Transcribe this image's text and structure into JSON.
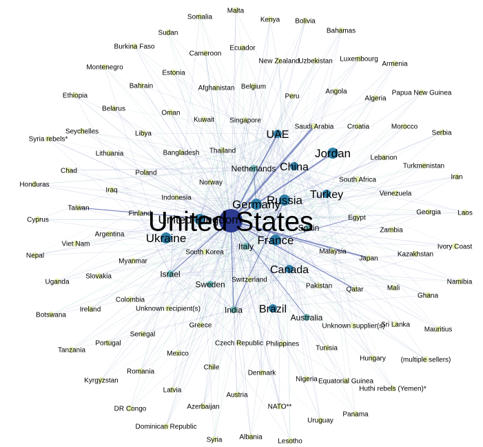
{
  "title": "",
  "colors": {
    "hub": "#2b3a8f",
    "large_node": "#2e7fa8",
    "mid_node": "#6fb8b8",
    "small_node": "#e9f3b4",
    "edge_blue": "#3a4da0",
    "edge_green": "#5cc09a"
  },
  "nodes": [
    {
      "id": "united-states",
      "label": "United States",
      "tier": 5
    },
    {
      "id": "united-kingdom",
      "label": "United Kingdom",
      "tier": 3
    },
    {
      "id": "germany",
      "label": "Germany",
      "tier": 3
    },
    {
      "id": "russia",
      "label": "Russia",
      "tier": 3
    },
    {
      "id": "france",
      "label": "France",
      "tier": 3
    },
    {
      "id": "jordan",
      "label": "Jordan",
      "tier": 3
    },
    {
      "id": "ukraine",
      "label": "Ukraine",
      "tier": 3
    },
    {
      "id": "uae",
      "label": "UAE",
      "tier": 2
    },
    {
      "id": "china",
      "label": "China",
      "tier": 2
    },
    {
      "id": "canada",
      "label": "Canada",
      "tier": 2
    },
    {
      "id": "turkey",
      "label": "Turkey",
      "tier": 2
    },
    {
      "id": "brazil",
      "label": "Brazil",
      "tier": 2
    },
    {
      "id": "netherlands",
      "label": "Netherlands",
      "tier": 1
    },
    {
      "id": "italy",
      "label": "Italy",
      "tier": 1
    },
    {
      "id": "spain",
      "label": "Spain",
      "tier": 1
    },
    {
      "id": "israel",
      "label": "Israel",
      "tier": 1
    },
    {
      "id": "sweden",
      "label": "Sweden",
      "tier": 1
    },
    {
      "id": "india",
      "label": "India",
      "tier": 1
    },
    {
      "id": "australia",
      "label": "Australia",
      "tier": 1
    },
    {
      "id": "saudi-arabia",
      "label": "Saudi Arabia",
      "tier": 0
    },
    {
      "id": "malta",
      "label": "Malta",
      "tier": 0
    },
    {
      "id": "somalia",
      "label": "Somalia",
      "tier": 0
    },
    {
      "id": "kenya",
      "label": "Kenya",
      "tier": 0
    },
    {
      "id": "bolivia",
      "label": "Bolivia",
      "tier": 0
    },
    {
      "id": "sudan",
      "label": "Sudan",
      "tier": 0
    },
    {
      "id": "bahamas",
      "label": "Bahamas",
      "tier": 0
    },
    {
      "id": "burkina-faso",
      "label": "Burkina Faso",
      "tier": 0
    },
    {
      "id": "ecuador",
      "label": "Ecuador",
      "tier": 0
    },
    {
      "id": "cameroon",
      "label": "Cameroon",
      "tier": 0
    },
    {
      "id": "new-zealand",
      "label": "New Zealand",
      "tier": 0
    },
    {
      "id": "uzbekistan",
      "label": "Uzbekistan",
      "tier": 0
    },
    {
      "id": "luxembourg",
      "label": "Luxembourg",
      "tier": 0
    },
    {
      "id": "armenia",
      "label": "Armenia",
      "tier": 0
    },
    {
      "id": "montenegro",
      "label": "Montenegro",
      "tier": 0
    },
    {
      "id": "estonia",
      "label": "Estonia",
      "tier": 0
    },
    {
      "id": "bahrain",
      "label": "Bahrain",
      "tier": 0
    },
    {
      "id": "afghanistan",
      "label": "Afghanistan",
      "tier": 0
    },
    {
      "id": "belgium",
      "label": "Belgium",
      "tier": 0
    },
    {
      "id": "angola",
      "label": "Angola",
      "tier": 0
    },
    {
      "id": "algeria",
      "label": "Algeria",
      "tier": 0
    },
    {
      "id": "papua-new-guinea",
      "label": "Papua New Guinea",
      "tier": 0
    },
    {
      "id": "ethiopia",
      "label": "Ethiopia",
      "tier": 0
    },
    {
      "id": "peru",
      "label": "Peru",
      "tier": 0
    },
    {
      "id": "belarus",
      "label": "Belarus",
      "tier": 0
    },
    {
      "id": "oman",
      "label": "Oman",
      "tier": 0
    },
    {
      "id": "kuwait",
      "label": "Kuwait",
      "tier": 0
    },
    {
      "id": "singapore",
      "label": "Singapore",
      "tier": 0
    },
    {
      "id": "croatia",
      "label": "Croatia",
      "tier": 0
    },
    {
      "id": "morocco",
      "label": "Morocco",
      "tier": 0
    },
    {
      "id": "serbia",
      "label": "Serbia",
      "tier": 0
    },
    {
      "id": "seychelles",
      "label": "Seychelles",
      "tier": 0
    },
    {
      "id": "libya",
      "label": "Libya",
      "tier": 0
    },
    {
      "id": "syria-rebels",
      "label": "Syria rebels*",
      "tier": 0
    },
    {
      "id": "lithuania",
      "label": "Lithuania",
      "tier": 0
    },
    {
      "id": "bangladesh",
      "label": "Bangladesh",
      "tier": 0
    },
    {
      "id": "thailand",
      "label": "Thailand",
      "tier": 0
    },
    {
      "id": "lebanon",
      "label": "Lebanon",
      "tier": 0
    },
    {
      "id": "turkmenistan",
      "label": "Turkmenistan",
      "tier": 0
    },
    {
      "id": "chad",
      "label": "Chad",
      "tier": 0
    },
    {
      "id": "poland",
      "label": "Poland",
      "tier": 0
    },
    {
      "id": "south-africa",
      "label": "South Africa",
      "tier": 0
    },
    {
      "id": "iran",
      "label": "Iran",
      "tier": 0
    },
    {
      "id": "honduras",
      "label": "Honduras",
      "tier": 0
    },
    {
      "id": "norway",
      "label": "Norway",
      "tier": 0
    },
    {
      "id": "iraq",
      "label": "Iraq",
      "tier": 0
    },
    {
      "id": "indonesia",
      "label": "Indonesia",
      "tier": 0
    },
    {
      "id": "venezuela",
      "label": "Venezuela",
      "tier": 0
    },
    {
      "id": "taiwan",
      "label": "Taiwan",
      "tier": 0
    },
    {
      "id": "finland",
      "label": "Finland",
      "tier": 0
    },
    {
      "id": "georgia",
      "label": "Georgia",
      "tier": 0
    },
    {
      "id": "laos",
      "label": "Laos",
      "tier": 0
    },
    {
      "id": "cyprus",
      "label": "Cyprus",
      "tier": 0
    },
    {
      "id": "egypt",
      "label": "Egypt",
      "tier": 0
    },
    {
      "id": "argentina",
      "label": "Argentina",
      "tier": 0
    },
    {
      "id": "zambia",
      "label": "Zambia",
      "tier": 0
    },
    {
      "id": "viet-nam",
      "label": "Viet Nam",
      "tier": 0
    },
    {
      "id": "ivory-coast",
      "label": "Ivory Coast",
      "tier": 0
    },
    {
      "id": "south-korea",
      "label": "South Korea",
      "tier": 0
    },
    {
      "id": "malaysia",
      "label": "Malaysia",
      "tier": 0
    },
    {
      "id": "nepal",
      "label": "Nepal",
      "tier": 0
    },
    {
      "id": "myanmar",
      "label": "Myanmar",
      "tier": 0
    },
    {
      "id": "kazakhstan",
      "label": "Kazakhstan",
      "tier": 0
    },
    {
      "id": "japan",
      "label": "Japan",
      "tier": 0
    },
    {
      "id": "uganda",
      "label": "Uganda",
      "tier": 0
    },
    {
      "id": "slovakia",
      "label": "Slovakia",
      "tier": 0
    },
    {
      "id": "namibia",
      "label": "Namibia",
      "tier": 0
    },
    {
      "id": "switzerland",
      "label": "Switzerland",
      "tier": 0
    },
    {
      "id": "pakistan",
      "label": "Pakistan",
      "tier": 0
    },
    {
      "id": "qatar",
      "label": "Qatar",
      "tier": 0
    },
    {
      "id": "mali",
      "label": "Mali",
      "tier": 0
    },
    {
      "id": "ireland",
      "label": "Ireland",
      "tier": 0
    },
    {
      "id": "colombia",
      "label": "Colombia",
      "tier": 0
    },
    {
      "id": "ghana",
      "label": "Ghana",
      "tier": 0
    },
    {
      "id": "botswana",
      "label": "Botswana",
      "tier": 0
    },
    {
      "id": "unknown-recipients",
      "label": "Unknown recipient(s)",
      "tier": 0
    },
    {
      "id": "greece",
      "label": "Greece",
      "tier": 0
    },
    {
      "id": "unknown-suppliers",
      "label": "Unknown supplier(s)",
      "tier": 0
    },
    {
      "id": "sri-lanka",
      "label": "Sri Lanka",
      "tier": 0
    },
    {
      "id": "mauritius",
      "label": "Mauritius",
      "tier": 0
    },
    {
      "id": "senegal",
      "label": "Senegal",
      "tier": 0
    },
    {
      "id": "portugal",
      "label": "Portugal",
      "tier": 0
    },
    {
      "id": "czech-republic",
      "label": "Czech Republic",
      "tier": 0
    },
    {
      "id": "philippines",
      "label": "Philippines",
      "tier": 0
    },
    {
      "id": "tunisia",
      "label": "Tunisia",
      "tier": 0
    },
    {
      "id": "tanzania",
      "label": "Tanzania",
      "tier": 0
    },
    {
      "id": "mexico",
      "label": "Mexico",
      "tier": 0
    },
    {
      "id": "hungary",
      "label": "Hungary",
      "tier": 0
    },
    {
      "id": "multiple-sellers",
      "label": "(multiple sellers)",
      "tier": 0
    },
    {
      "id": "chile",
      "label": "Chile",
      "tier": 0
    },
    {
      "id": "romania",
      "label": "Romania",
      "tier": 0
    },
    {
      "id": "denmark",
      "label": "Denmark",
      "tier": 0
    },
    {
      "id": "nigeria",
      "label": "Nigeria",
      "tier": 0
    },
    {
      "id": "equatorial-guinea",
      "label": "Equatorial Guinea",
      "tier": 0
    },
    {
      "id": "kyrgyzstan",
      "label": "Kyrgyzstan",
      "tier": 0
    },
    {
      "id": "huthi-rebels",
      "label": "Huthi rebels (Yemen)*",
      "tier": 0
    },
    {
      "id": "latvia",
      "label": "Latvia",
      "tier": 0
    },
    {
      "id": "austria",
      "label": "Austria",
      "tier": 0
    },
    {
      "id": "dr-congo",
      "label": "DR Congo",
      "tier": 0
    },
    {
      "id": "azerbaijan",
      "label": "Azerbaijan",
      "tier": 0
    },
    {
      "id": "nato",
      "label": "NATO**",
      "tier": 0
    },
    {
      "id": "panama",
      "label": "Panama",
      "tier": 0
    },
    {
      "id": "uruguay",
      "label": "Uruguay",
      "tier": 0
    },
    {
      "id": "dominican-republic",
      "label": "Dominican Republic",
      "tier": 0
    },
    {
      "id": "syria",
      "label": "Syria",
      "tier": 0
    },
    {
      "id": "albania",
      "label": "Albania",
      "tier": 0
    },
    {
      "id": "lesotho",
      "label": "Lesotho",
      "tier": 0
    }
  ]
}
